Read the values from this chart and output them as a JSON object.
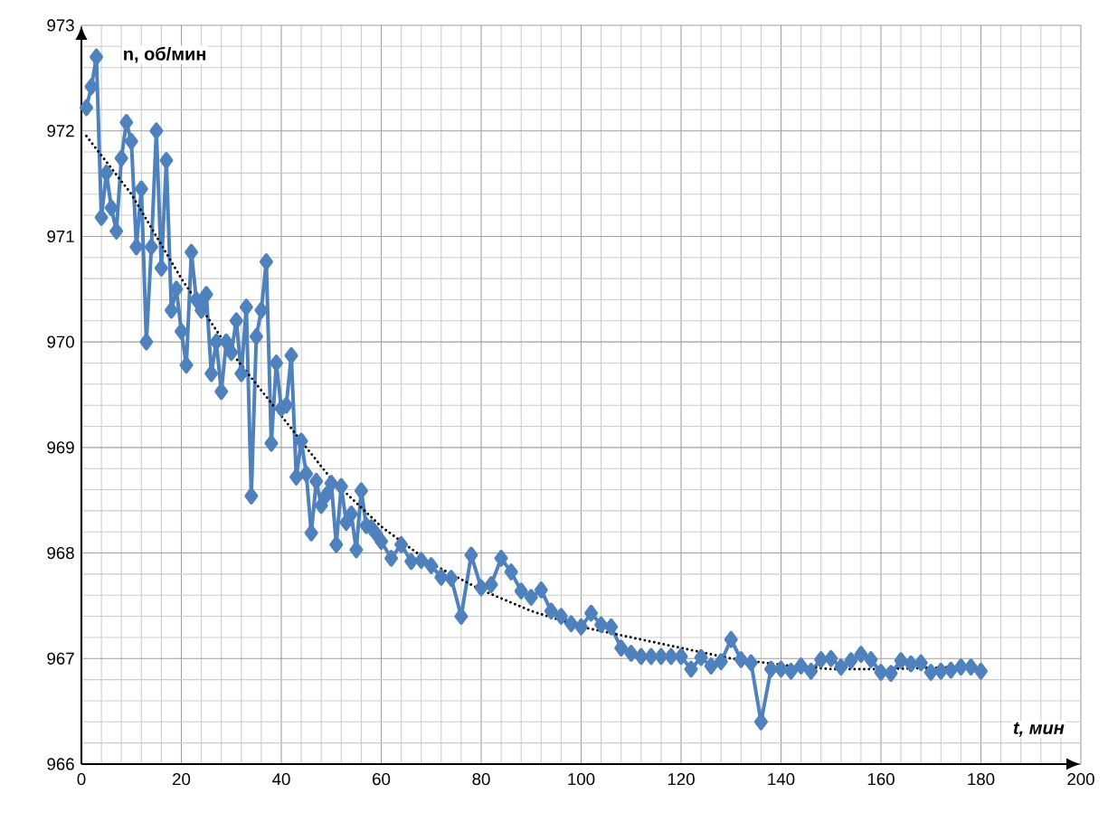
{
  "chart_data": {
    "type": "line",
    "xlabel": "t, мин",
    "ylabel": "n, об/мин",
    "xlim": [
      0,
      200
    ],
    "xticks": [
      0,
      20,
      40,
      60,
      80,
      100,
      120,
      140,
      160,
      180,
      200
    ],
    "ylim": [
      966,
      973
    ],
    "yticks": [
      966,
      967,
      968,
      969,
      970,
      971,
      972,
      973
    ],
    "grid": true,
    "series": [
      {
        "color": "#4f81bd",
        "marker": "diamond",
        "line_style": "solid",
        "x": [
          1,
          2,
          3,
          4,
          5,
          6,
          7,
          8,
          9,
          10,
          11,
          12,
          13,
          14,
          15,
          16,
          17,
          18,
          19,
          20,
          21,
          22,
          23,
          24,
          25,
          26,
          27,
          28,
          29,
          30,
          31,
          32,
          33,
          34,
          35,
          36,
          37,
          38,
          39,
          40,
          41,
          42,
          43,
          44,
          45,
          46,
          47,
          48,
          49,
          50,
          51,
          52,
          53,
          54,
          55,
          56,
          57,
          58,
          59,
          60,
          62,
          64,
          66,
          68,
          70,
          72,
          74,
          76,
          78,
          80,
          82,
          84,
          86,
          88,
          90,
          92,
          94,
          96,
          98,
          100,
          102,
          104,
          106,
          108,
          110,
          112,
          114,
          116,
          118,
          120,
          122,
          124,
          126,
          128,
          130,
          132,
          134,
          136,
          138,
          140,
          142,
          144,
          146,
          148,
          150,
          152,
          154,
          156,
          158,
          160,
          162,
          164,
          166,
          168,
          170,
          172,
          174,
          176,
          178,
          180
        ],
        "values": [
          972.22,
          972.42,
          972.7,
          971.18,
          971.6,
          971.27,
          971.05,
          971.74,
          972.08,
          971.9,
          970.9,
          971.45,
          970.0,
          970.9,
          972.0,
          970.7,
          971.72,
          970.3,
          970.5,
          970.1,
          969.78,
          970.85,
          970.4,
          970.3,
          970.45,
          969.7,
          970.0,
          969.53,
          970.0,
          969.9,
          970.2,
          969.7,
          970.33,
          968.54,
          970.05,
          970.3,
          970.76,
          969.04,
          969.8,
          969.37,
          969.4,
          969.87,
          968.72,
          969.06,
          968.75,
          968.19,
          968.68,
          968.45,
          968.55,
          968.66,
          968.08,
          968.63,
          968.29,
          968.37,
          968.03,
          968.59,
          968.26,
          968.24,
          968.18,
          968.11,
          967.95,
          968.08,
          967.92,
          967.93,
          967.88,
          967.77,
          967.76,
          967.4,
          967.98,
          967.67,
          967.7,
          967.95,
          967.82,
          967.64,
          967.58,
          967.65,
          967.45,
          967.4,
          967.33,
          967.3,
          967.43,
          967.32,
          967.3,
          967.1,
          967.05,
          967.02,
          967.02,
          967.02,
          967.02,
          967.02,
          966.9,
          967.01,
          966.93,
          966.97,
          967.18,
          966.99,
          966.96,
          966.4,
          966.9,
          966.9,
          966.88,
          966.93,
          966.88,
          966.99,
          967.0,
          966.92,
          966.98,
          967.04,
          966.99,
          966.87,
          966.86,
          966.98,
          966.95,
          966.96,
          966.87,
          966.88,
          966.89,
          966.92,
          966.92,
          966.88
        ]
      },
      {
        "type": "line",
        "color": "#000000",
        "marker": "none",
        "line_style": "dotted",
        "x": [
          1,
          10,
          20,
          30,
          40,
          50,
          60,
          70,
          80,
          90,
          100,
          110,
          120,
          130,
          140,
          150,
          160,
          170,
          180
        ],
        "values": [
          971.95,
          971.4,
          970.6,
          969.9,
          969.3,
          968.7,
          968.25,
          967.9,
          967.65,
          967.45,
          967.3,
          967.2,
          967.1,
          967.0,
          966.94,
          966.9,
          966.9,
          966.91,
          966.93
        ]
      }
    ]
  }
}
